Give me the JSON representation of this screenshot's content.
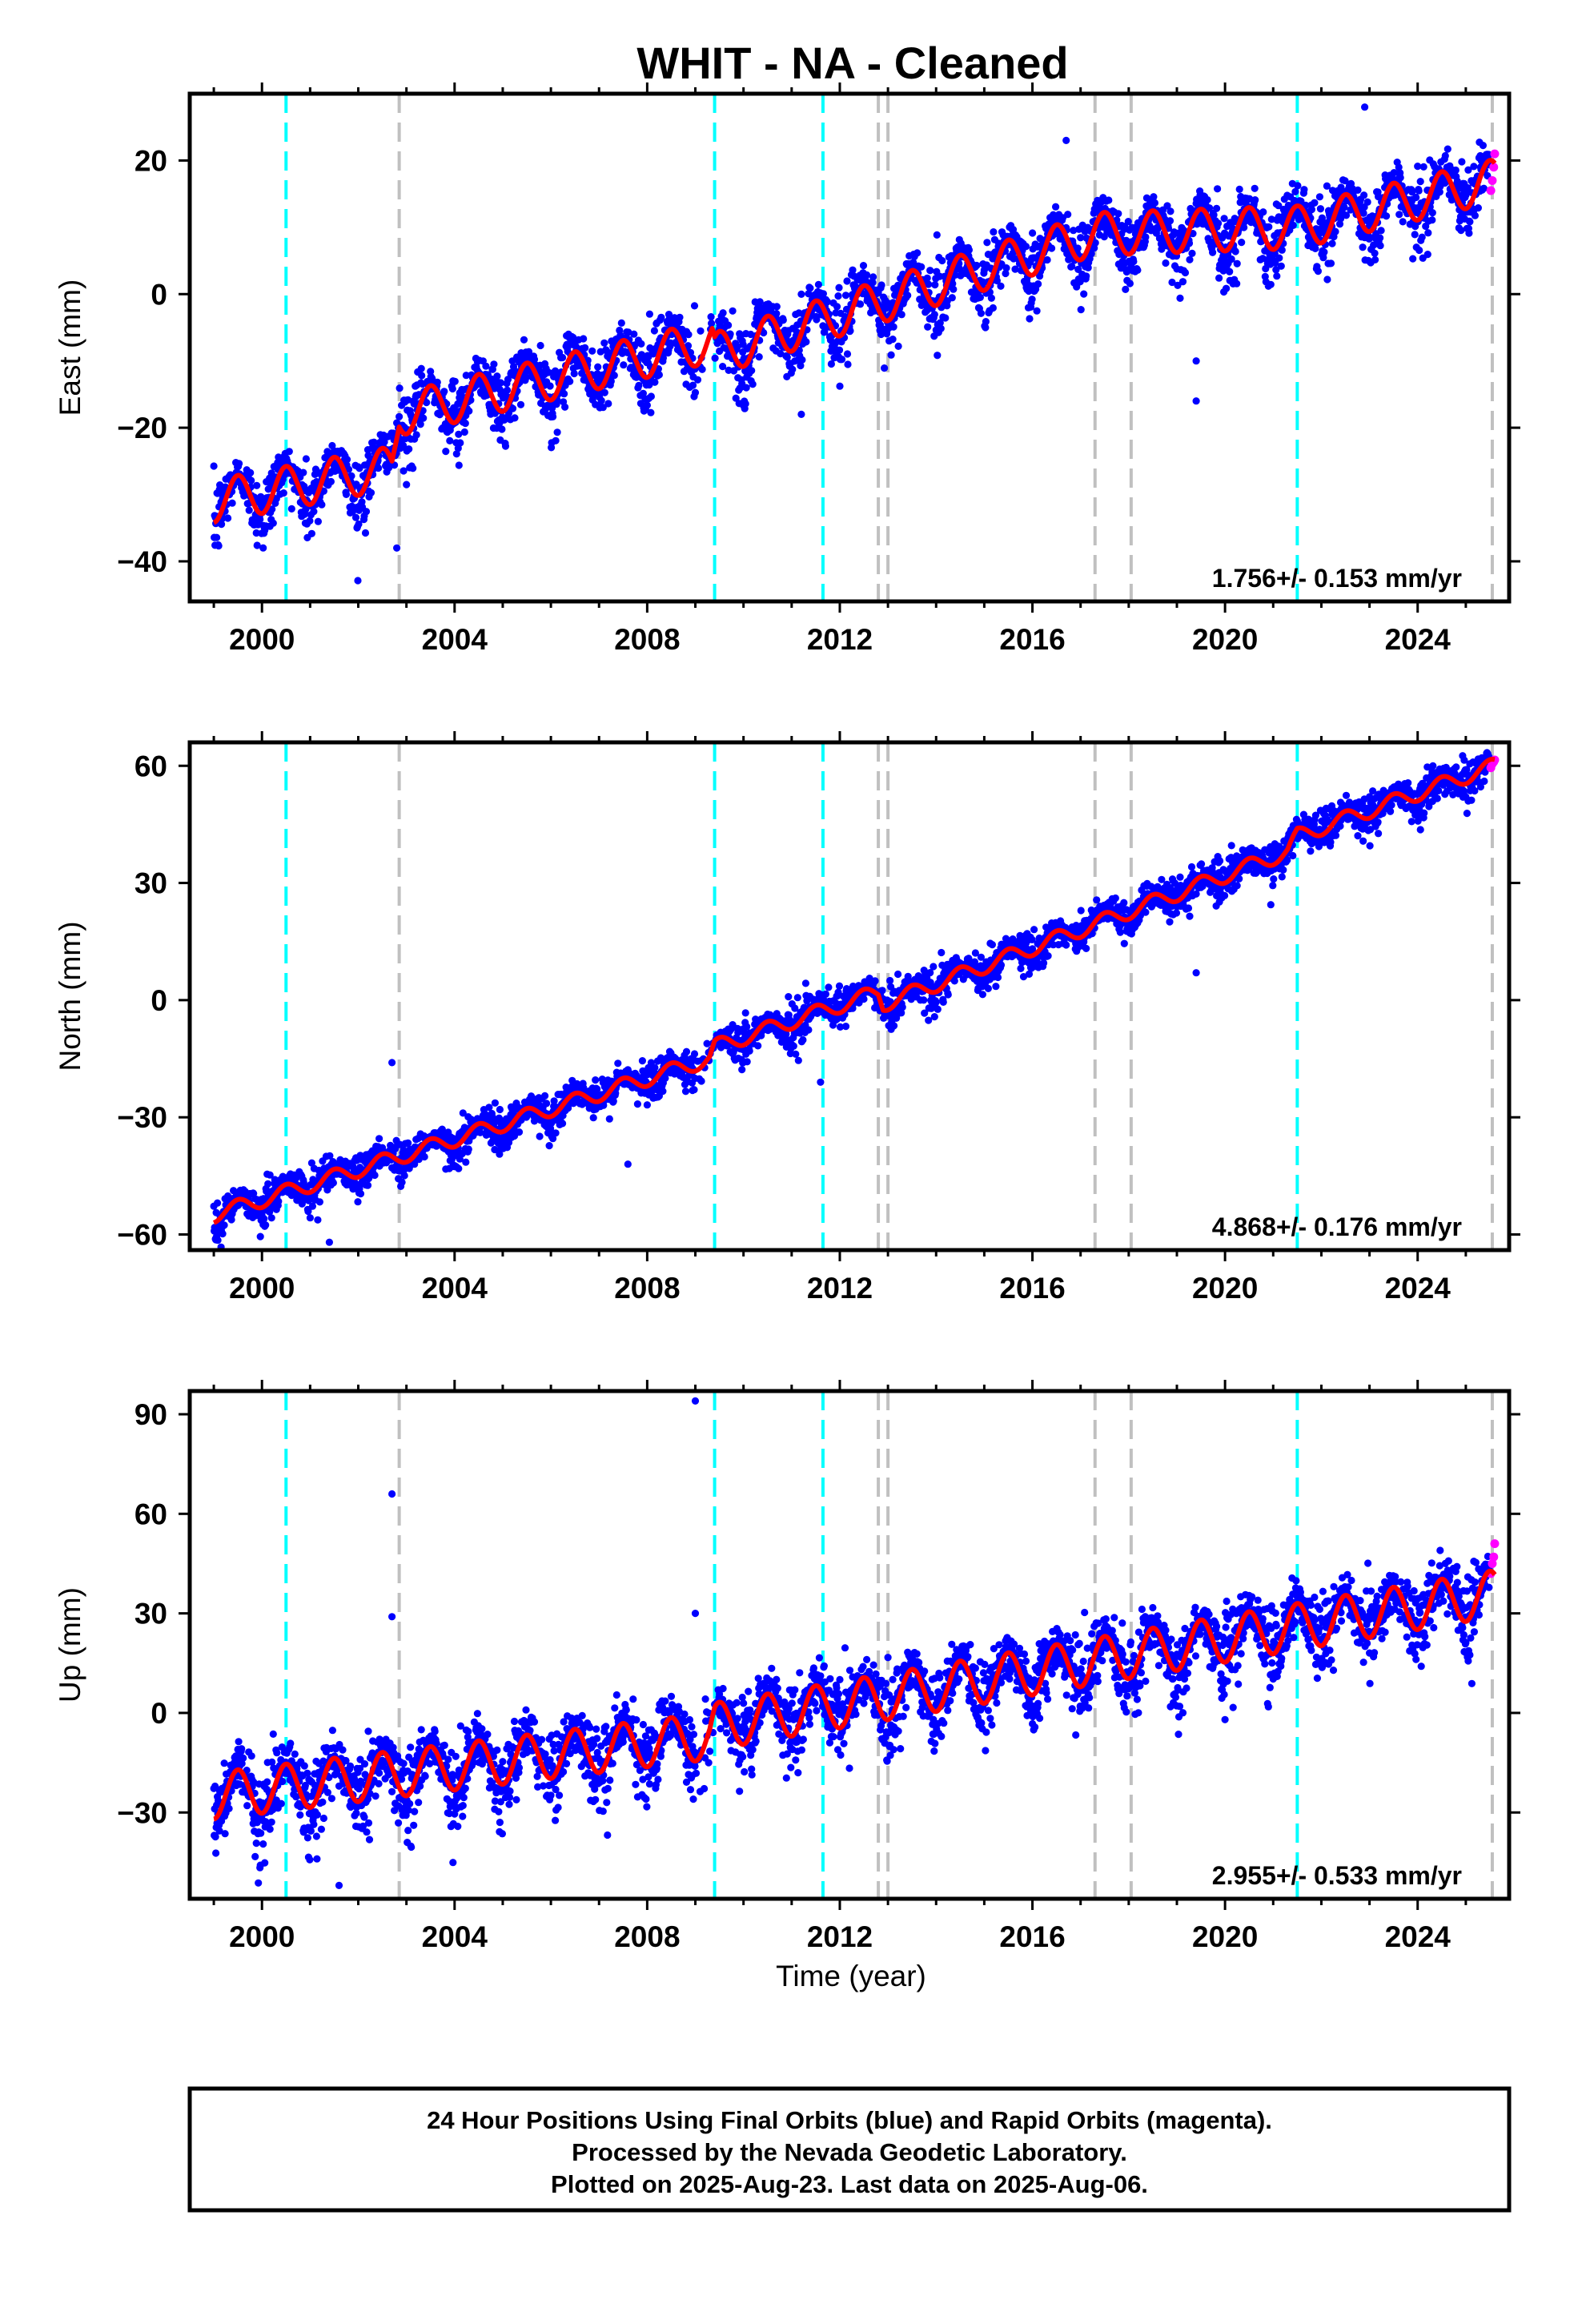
{
  "title": "WHIT  - NA - Cleaned",
  "xlabel": "Time (year)",
  "footer": {
    "line1": "24 Hour Positions Using Final Orbits (blue) and Rapid Orbits (magenta).",
    "line2": "Processed by the Nevada Geodetic Laboratory.",
    "line3": "Plotted on 2025-Aug-23. Last data on 2025-Aug-06."
  },
  "colors": {
    "final": "#0000ff",
    "rapid": "#ff00ff",
    "model": "#ff0000",
    "equipment_change": "#c0c0c0",
    "earthquake": "#00ffff"
  },
  "chart_data": [
    {
      "type": "scatter",
      "component": "East",
      "ylabel": "East (mm)",
      "xlim": [
        1998.5,
        2025.9
      ],
      "ylim": [
        -46,
        30
      ],
      "xticks": [
        2000,
        2004,
        2008,
        2012,
        2016,
        2020,
        2024
      ],
      "yticks": [
        -40,
        -20,
        0,
        20
      ],
      "rate_label": "1.756+/- 0.153 mm/yr",
      "model_knots": [
        [
          1999.0,
          -31
        ],
        [
          2002.7,
          -26
        ],
        [
          2002.85,
          -18
        ],
        [
          2009.35,
          -7
        ],
        [
          2009.4,
          -9
        ],
        [
          2017.3,
          9
        ],
        [
          2021.5,
          10
        ],
        [
          2025.6,
          17
        ]
      ],
      "amplitude": 3.2,
      "scatter": 2.2,
      "outliers": [
        [
          2019.4,
          -10
        ],
        [
          2019.4,
          -16
        ],
        [
          2011.2,
          -18
        ],
        [
          2002.8,
          -38
        ],
        [
          2022.9,
          28
        ],
        [
          2016.7,
          23
        ]
      ]
    },
    {
      "type": "scatter",
      "component": "North",
      "ylabel": "North (mm)",
      "xlim": [
        1998.5,
        2025.9
      ],
      "ylim": [
        -64,
        66
      ],
      "xticks": [
        2000,
        2004,
        2008,
        2012,
        2016,
        2020,
        2024
      ],
      "yticks": [
        -60,
        -30,
        0,
        30,
        60
      ],
      "rate_label": "4.868+/- 0.176 mm/yr",
      "model_knots": [
        [
          1999.0,
          -55
        ],
        [
          2009.3,
          -15
        ],
        [
          2009.4,
          -12
        ],
        [
          2012.8,
          2
        ],
        [
          2012.9,
          -1
        ],
        [
          2021.3,
          38
        ],
        [
          2021.5,
          42
        ],
        [
          2025.6,
          60
        ]
      ],
      "amplitude": 2.0,
      "scatter": 2.2,
      "outliers": [
        [
          2002.7,
          -16
        ],
        [
          2019.4,
          7
        ],
        [
          2011.6,
          -21
        ],
        [
          2007.6,
          -42
        ],
        [
          2001.4,
          -62
        ]
      ]
    },
    {
      "type": "scatter",
      "component": "Up",
      "ylabel": "Up (mm)",
      "xlim": [
        1998.5,
        2025.9
      ],
      "ylim": [
        -56,
        97
      ],
      "xticks": [
        2000,
        2004,
        2008,
        2012,
        2016,
        2020,
        2024
      ],
      "yticks": [
        -30,
        0,
        30,
        60,
        90
      ],
      "rate_label": "2.955+/- 0.533 mm/yr",
      "model_knots": [
        [
          1999.0,
          -25
        ],
        [
          2009.3,
          -7
        ],
        [
          2009.4,
          -4
        ],
        [
          2021.5,
          26
        ],
        [
          2025.6,
          36
        ]
      ],
      "amplitude": 7.0,
      "scatter": 5.0,
      "outliers": [
        [
          2002.7,
          66
        ],
        [
          2002.7,
          29
        ],
        [
          2009.0,
          94
        ],
        [
          2009.0,
          30
        ],
        [
          2001.6,
          -52
        ]
      ]
    }
  ],
  "steps": {
    "earthquake": [
      2000.5,
      2009.4,
      2011.65,
      2021.5
    ],
    "equipment_change": [
      2002.85,
      2012.8,
      2013.0,
      2017.3,
      2018.05,
      2025.55
    ]
  },
  "rapid_points": [
    [
      2025.52,
      15.5,
      59.5,
      42.0
    ],
    [
      2025.55,
      17.0,
      60.5,
      45.0
    ],
    [
      2025.58,
      19.0,
      61.0,
      47.0
    ],
    [
      2025.6,
      21.0,
      61.5,
      51.0
    ]
  ]
}
